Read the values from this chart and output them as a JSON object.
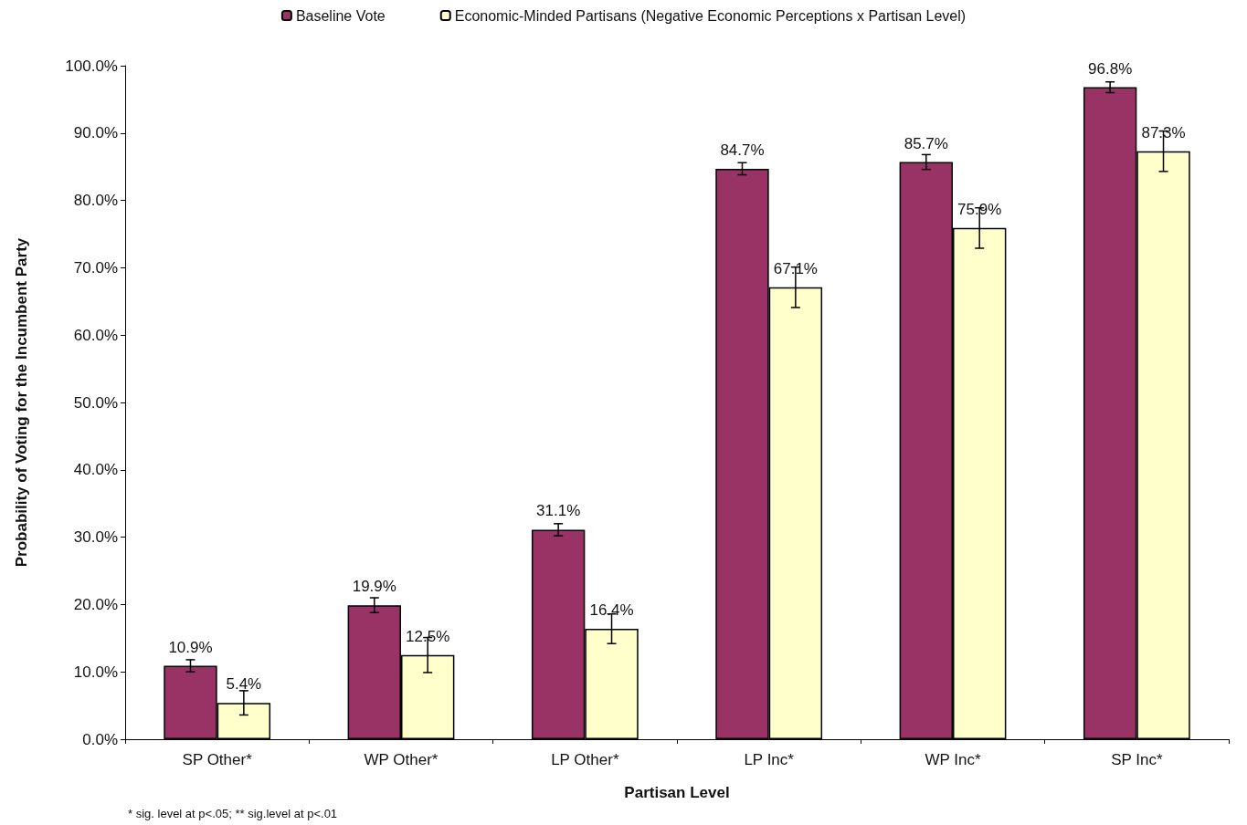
{
  "chart_data": {
    "type": "bar",
    "xlabel": "Partisan Level",
    "ylabel": "Probability of Voting for the Incumbent Party",
    "categories": [
      "SP Other*",
      "WP Other*",
      "LP Other*",
      "LP Inc*",
      "WP Inc*",
      "SP Inc*"
    ],
    "series": [
      {
        "name": "Baseline Vote",
        "color": "#993366",
        "values": [
          10.9,
          19.9,
          31.1,
          84.7,
          85.7,
          96.8
        ],
        "errors": [
          0.9,
          1.1,
          0.9,
          0.9,
          1.1,
          0.8
        ],
        "value_labels": [
          "10.9%",
          "19.9%",
          "31.1%",
          "84.7%",
          "85.7%",
          "96.8%"
        ]
      },
      {
        "name": "Economic-Minded Partisans (Negative Economic Perceptions x Partisan Level)",
        "color": "#ffffcc",
        "values": [
          5.4,
          12.5,
          16.4,
          67.1,
          75.9,
          87.3
        ],
        "errors": [
          1.8,
          2.6,
          2.2,
          3,
          3,
          3
        ],
        "value_labels": [
          "5.4%",
          "12.5%",
          "16.4%",
          "67.1%",
          "75.9%",
          "87.3%"
        ]
      }
    ],
    "ylim": [
      0,
      100
    ],
    "yticks": [
      {
        "value": 0,
        "label": "0.0%"
      },
      {
        "value": 10,
        "label": "10.0%"
      },
      {
        "value": 20,
        "label": "20.0%"
      },
      {
        "value": 30,
        "label": "30.0%"
      },
      {
        "value": 40,
        "label": "40.0%"
      },
      {
        "value": 50,
        "label": "50.0%"
      },
      {
        "value": 60,
        "label": "60.0%"
      },
      {
        "value": 70,
        "label": "70.0%"
      },
      {
        "value": 80,
        "label": "80.0%"
      },
      {
        "value": 90,
        "label": "90.0%"
      },
      {
        "value": 100,
        "label": "100.0%"
      }
    ],
    "legend": "top",
    "annotations": [
      "* sig. level at p<.05; ** sig.level at p<.01"
    ]
  }
}
